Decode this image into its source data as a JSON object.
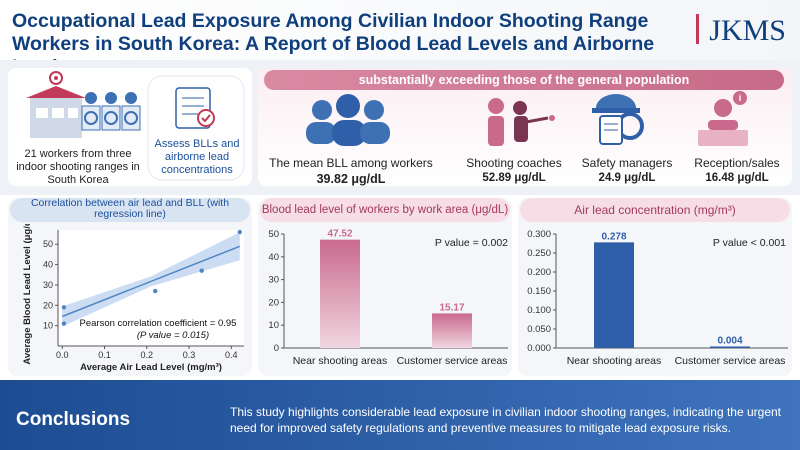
{
  "title": "Occupational Lead Exposure Among Civilian Indoor Shooting Range Workers in South Korea: A Report of Blood Lead Levels and Airborne Lead",
  "journal_logo": "JKMS",
  "study": {
    "population_text": "21 workers from three indoor shooting ranges in South Korea",
    "aim_text": "Assess BLLs and airborne lead concentrations"
  },
  "bll_summary": {
    "banner": "substantially exceeding those of the general population",
    "mean_label": "The mean BLL among workers",
    "mean_value": "39.82 μg/dL",
    "groups": [
      {
        "label": "Shooting coaches",
        "value": "52.89 μg/dL",
        "icon": "shooting-coach-icon"
      },
      {
        "label": "Safety managers",
        "value": "24.9 μg/dL",
        "icon": "safety-manager-icon"
      },
      {
        "label": "Reception/sales",
        "value": "16.48 μg/dL",
        "icon": "reception-icon"
      }
    ]
  },
  "panels": {
    "correlation_title": "Correlation between air lead and BLL (with regression line)",
    "bll_title": "Blood lead level of workers by work area (μg/dL)",
    "air_title": "Air lead concentration (mg/m³)"
  },
  "chart_data": [
    {
      "type": "scatter",
      "title": "Correlation between air lead and BLL (with regression line)",
      "xlabel": "Average Air Lead Level (mg/m³)",
      "ylabel": "Average Blood Lead Level (μg/dL)",
      "xlim": [
        -0.01,
        0.43
      ],
      "ylim": [
        0,
        57
      ],
      "xticks": [
        "0.0",
        "0.1",
        "0.2",
        "0.3",
        "0.4"
      ],
      "yticks": [
        "10",
        "20",
        "30",
        "40",
        "50"
      ],
      "points": [
        {
          "x": 0.004,
          "y": 19
        },
        {
          "x": 0.004,
          "y": 11
        },
        {
          "x": 0.22,
          "y": 27
        },
        {
          "x": 0.33,
          "y": 37
        },
        {
          "x": 0.42,
          "y": 56
        }
      ],
      "regression": {
        "x": [
          0.0,
          0.42
        ],
        "y": [
          14.5,
          49
        ]
      },
      "annotation": "Pearson correlation coefficient = 0.95",
      "annotation_p": "(P value = 0.015)"
    },
    {
      "type": "bar",
      "title": "Blood lead level of workers by work area (μg/dL)",
      "categories": [
        "Near shooting areas",
        "Customer service areas"
      ],
      "values": [
        47.52,
        15.17
      ],
      "value_labels": [
        "47.52",
        "15.17"
      ],
      "ylim": [
        0,
        50
      ],
      "yticks": [
        "0",
        "10",
        "20",
        "30",
        "40",
        "50"
      ],
      "annotation": "P value = 0.002",
      "color": "#c96a8c"
    },
    {
      "type": "bar",
      "title": "Air lead concentration (mg/m³)",
      "categories": [
        "Near shooting areas",
        "Customer service areas"
      ],
      "values": [
        0.278,
        0.004
      ],
      "value_labels": [
        "0.278",
        "0.004"
      ],
      "ylim": [
        0,
        0.3
      ],
      "yticks": [
        "0.000",
        "0.050",
        "0.100",
        "0.150",
        "0.200",
        "0.250",
        "0.300"
      ],
      "annotation": "P value < 0.001",
      "color": "#2f5fa8"
    }
  ],
  "conclusions": {
    "heading": "Conclusions",
    "text": "This study highlights considerable lead exposure in civilian indoor shooting ranges, indicating the urgent need for improved safety regulations and preventive measures to mitigate lead exposure risks."
  },
  "colors": {
    "navy": "#0f3f7d",
    "pink": "#c96a8c",
    "blue": "#2f5fa8"
  }
}
